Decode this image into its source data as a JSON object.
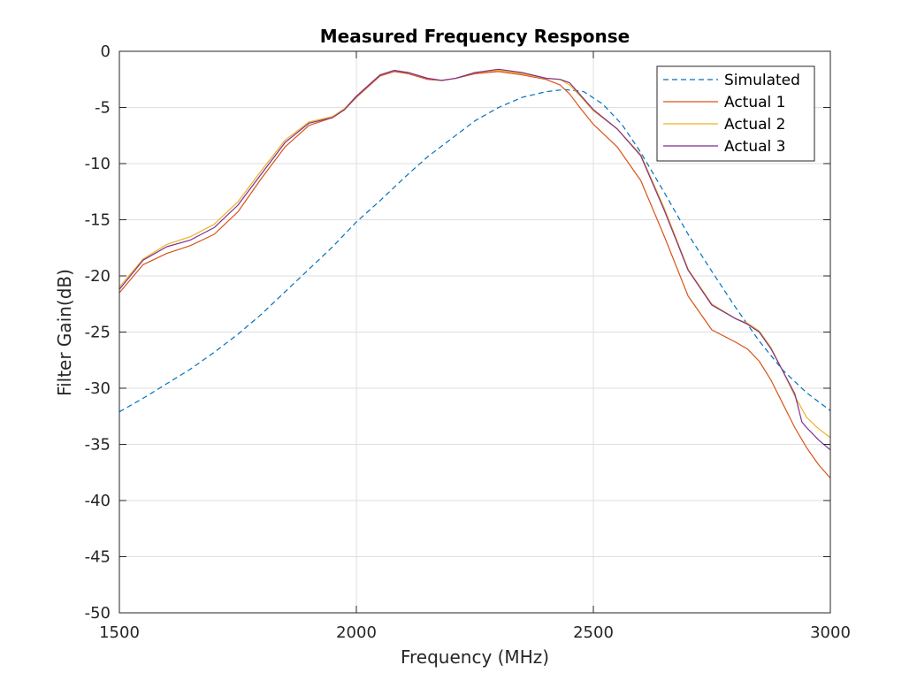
{
  "chart_data": {
    "type": "line",
    "title": "Measured Frequency Response",
    "xlabel": "Frequency (MHz)",
    "ylabel": "Filter Gain(dB)",
    "xlim": [
      1500,
      3000
    ],
    "ylim": [
      -50,
      0
    ],
    "xticks": [
      1500,
      2000,
      2500,
      3000
    ],
    "yticks": [
      0,
      -5,
      -10,
      -15,
      -20,
      -25,
      -30,
      -35,
      -40,
      -45,
      -50
    ],
    "grid": true,
    "legend_position": "top-right",
    "series": [
      {
        "name": "Simulated",
        "color": "#0072BD",
        "style": "dashed",
        "x": [
          1500,
          1550,
          1600,
          1650,
          1700,
          1750,
          1800,
          1850,
          1900,
          1950,
          2000,
          2050,
          2100,
          2150,
          2200,
          2250,
          2300,
          2350,
          2400,
          2440,
          2480,
          2520,
          2560,
          2600,
          2650,
          2700,
          2750,
          2800,
          2850,
          2900,
          2950,
          3000
        ],
        "y": [
          -32.1,
          -30.9,
          -29.6,
          -28.3,
          -26.8,
          -25.2,
          -23.4,
          -21.4,
          -19.4,
          -17.4,
          -15.2,
          -13.3,
          -11.3,
          -9.4,
          -7.8,
          -6.2,
          -5.0,
          -4.1,
          -3.6,
          -3.4,
          -3.6,
          -4.7,
          -6.5,
          -9.0,
          -12.6,
          -16.3,
          -19.6,
          -22.8,
          -25.8,
          -28.4,
          -30.4,
          -32.0
        ]
      },
      {
        "name": "Actual 1",
        "color": "#D95319",
        "style": "solid",
        "x": [
          1500,
          1550,
          1600,
          1650,
          1700,
          1750,
          1800,
          1850,
          1900,
          1950,
          1975,
          2000,
          2050,
          2080,
          2110,
          2150,
          2180,
          2210,
          2250,
          2300,
          2350,
          2400,
          2430,
          2450,
          2475,
          2500,
          2550,
          2600,
          2650,
          2700,
          2750,
          2800,
          2825,
          2850,
          2875,
          2900,
          2925,
          2950,
          2975,
          3000
        ],
        "y": [
          -21.5,
          -19.0,
          -18.0,
          -17.3,
          -16.3,
          -14.3,
          -11.3,
          -8.5,
          -6.6,
          -5.9,
          -5.2,
          -4.1,
          -2.2,
          -1.8,
          -2.0,
          -2.5,
          -2.6,
          -2.4,
          -2.0,
          -1.8,
          -2.1,
          -2.5,
          -3.0,
          -3.8,
          -5.2,
          -6.5,
          -8.5,
          -11.5,
          -16.5,
          -21.8,
          -24.8,
          -25.9,
          -26.5,
          -27.6,
          -29.3,
          -31.4,
          -33.5,
          -35.3,
          -36.8,
          -38.0
        ]
      },
      {
        "name": "Actual 2",
        "color": "#EDB120",
        "style": "solid",
        "x": [
          1500,
          1550,
          1600,
          1650,
          1700,
          1750,
          1800,
          1850,
          1900,
          1950,
          1975,
          2000,
          2050,
          2080,
          2110,
          2150,
          2180,
          2210,
          2250,
          2300,
          2350,
          2400,
          2430,
          2450,
          2475,
          2500,
          2550,
          2600,
          2650,
          2700,
          2750,
          2800,
          2825,
          2850,
          2875,
          2900,
          2925,
          2950,
          2975,
          3000
        ],
        "y": [
          -21.0,
          -18.5,
          -17.2,
          -16.5,
          -15.4,
          -13.4,
          -10.6,
          -7.9,
          -6.3,
          -5.8,
          -5.1,
          -4.0,
          -2.1,
          -1.7,
          -1.9,
          -2.4,
          -2.6,
          -2.4,
          -1.9,
          -1.7,
          -2.0,
          -2.4,
          -2.5,
          -3.0,
          -4.1,
          -5.3,
          -6.9,
          -9.2,
          -14.0,
          -19.4,
          -22.5,
          -23.8,
          -24.2,
          -24.9,
          -26.4,
          -28.5,
          -30.7,
          -32.6,
          -33.6,
          -34.4
        ]
      },
      {
        "name": "Actual 3",
        "color": "#7E2F8E",
        "style": "solid",
        "x": [
          1500,
          1550,
          1600,
          1650,
          1700,
          1750,
          1800,
          1850,
          1900,
          1950,
          1975,
          2000,
          2050,
          2080,
          2110,
          2150,
          2180,
          2210,
          2250,
          2300,
          2350,
          2400,
          2430,
          2450,
          2475,
          2500,
          2550,
          2600,
          2650,
          2700,
          2750,
          2800,
          2825,
          2850,
          2875,
          2900,
          2925,
          2940,
          2950,
          2975,
          3000
        ],
        "y": [
          -21.2,
          -18.6,
          -17.4,
          -16.8,
          -15.7,
          -13.7,
          -10.9,
          -8.1,
          -6.4,
          -5.9,
          -5.2,
          -4.0,
          -2.1,
          -1.7,
          -1.9,
          -2.4,
          -2.6,
          -2.4,
          -1.9,
          -1.6,
          -1.9,
          -2.4,
          -2.5,
          -2.8,
          -4.0,
          -5.2,
          -6.9,
          -9.3,
          -14.2,
          -19.5,
          -22.6,
          -23.8,
          -24.3,
          -25.0,
          -26.5,
          -28.5,
          -30.5,
          -33.0,
          -33.5,
          -34.6,
          -35.5
        ]
      }
    ]
  }
}
